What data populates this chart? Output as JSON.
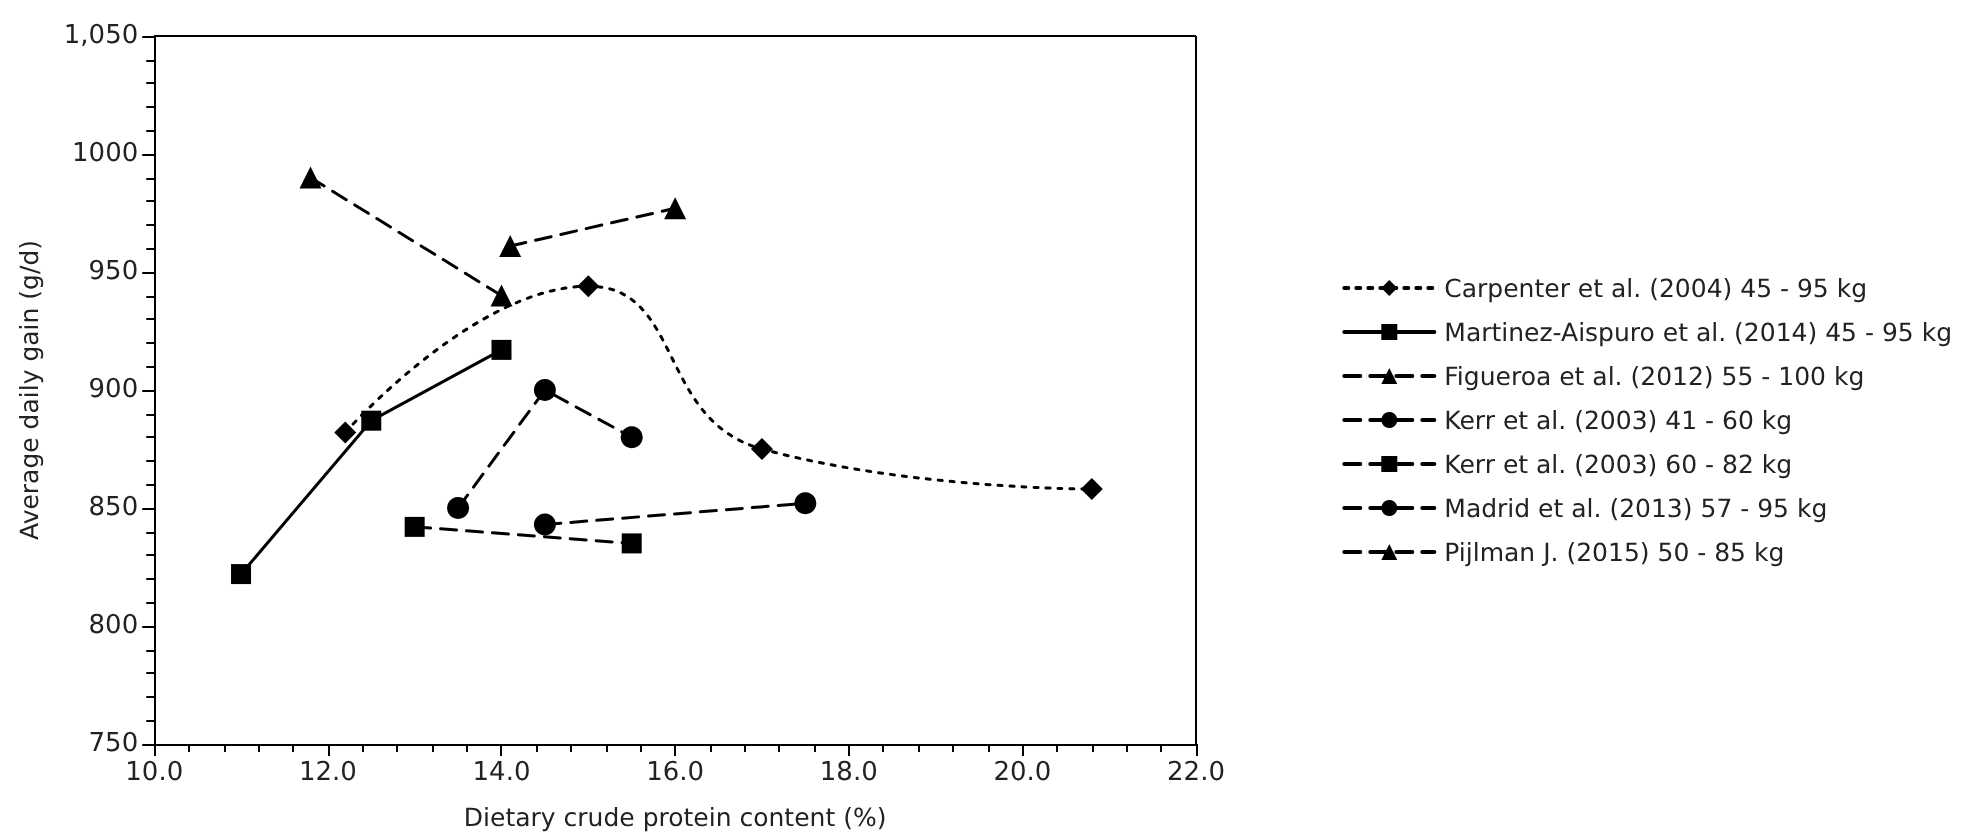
{
  "chart_data": {
    "type": "line",
    "xlabel": "Dietary crude protein content (%)",
    "ylabel": "Average daily gain (g/d)",
    "xlim": [
      10,
      22
    ],
    "xticks": [
      {
        "value": 10,
        "label": "10.0"
      },
      {
        "value": 12,
        "label": "12.0"
      },
      {
        "value": 14,
        "label": "14.0"
      },
      {
        "value": 16,
        "label": "16.0"
      },
      {
        "value": 18,
        "label": "18.0"
      },
      {
        "value": 20,
        "label": "20.0"
      },
      {
        "value": 22,
        "label": "22.0"
      }
    ],
    "ylim": [
      750,
      1050
    ],
    "yticks": [
      750,
      800,
      850,
      900,
      950,
      1000,
      {
        "value": 1050,
        "label": "1,050"
      }
    ],
    "grid": false,
    "legend": "right",
    "series": [
      {
        "name": "Carpenter et al. (2004) 45 - 95 kg",
        "color": "#000000",
        "marker": "diamond",
        "line_style": "dotted",
        "x": [
          12.2,
          15,
          17,
          20.8
        ],
        "values": [
          882,
          944,
          875,
          858
        ]
      },
      {
        "name": "Martinez-Aispuro et al. (2014) 45 - 95 kg",
        "color": "#000000",
        "marker": "square",
        "line_style": "solid",
        "x": [
          11,
          12.5,
          14
        ],
        "values": [
          822,
          887,
          917
        ]
      },
      {
        "name": "Figueroa et al. (2012) 55 - 100 kg",
        "color": "#000000",
        "marker": "triangle",
        "line_style": "dashed",
        "x": [
          11.8,
          14
        ],
        "values": [
          990,
          940
        ]
      },
      {
        "name": "Kerr et al. (2003) 41 - 60 kg",
        "color": "#000000",
        "marker": "circle",
        "line_style": "dashed",
        "x": [
          14.5,
          17.5
        ],
        "values": [
          843,
          852
        ]
      },
      {
        "name": "Kerr et al. (2003) 60 - 82 kg",
        "color": "#000000",
        "marker": "square",
        "line_style": "dashed",
        "x": [
          13,
          15.5
        ],
        "values": [
          842,
          835
        ]
      },
      {
        "name": "Madrid et al. (2013) 57 - 95 kg",
        "color": "#000000",
        "marker": "circle",
        "line_style": "dashed",
        "x": [
          13.5,
          14.5,
          15.5
        ],
        "values": [
          850,
          900,
          880
        ]
      },
      {
        "name": "Pijlman J. (2015) 50 - 85 kg",
        "color": "#000000",
        "marker": "triangle",
        "line_style": "dashed",
        "x": [
          14.1,
          16
        ],
        "values": [
          961,
          977
        ]
      }
    ]
  }
}
